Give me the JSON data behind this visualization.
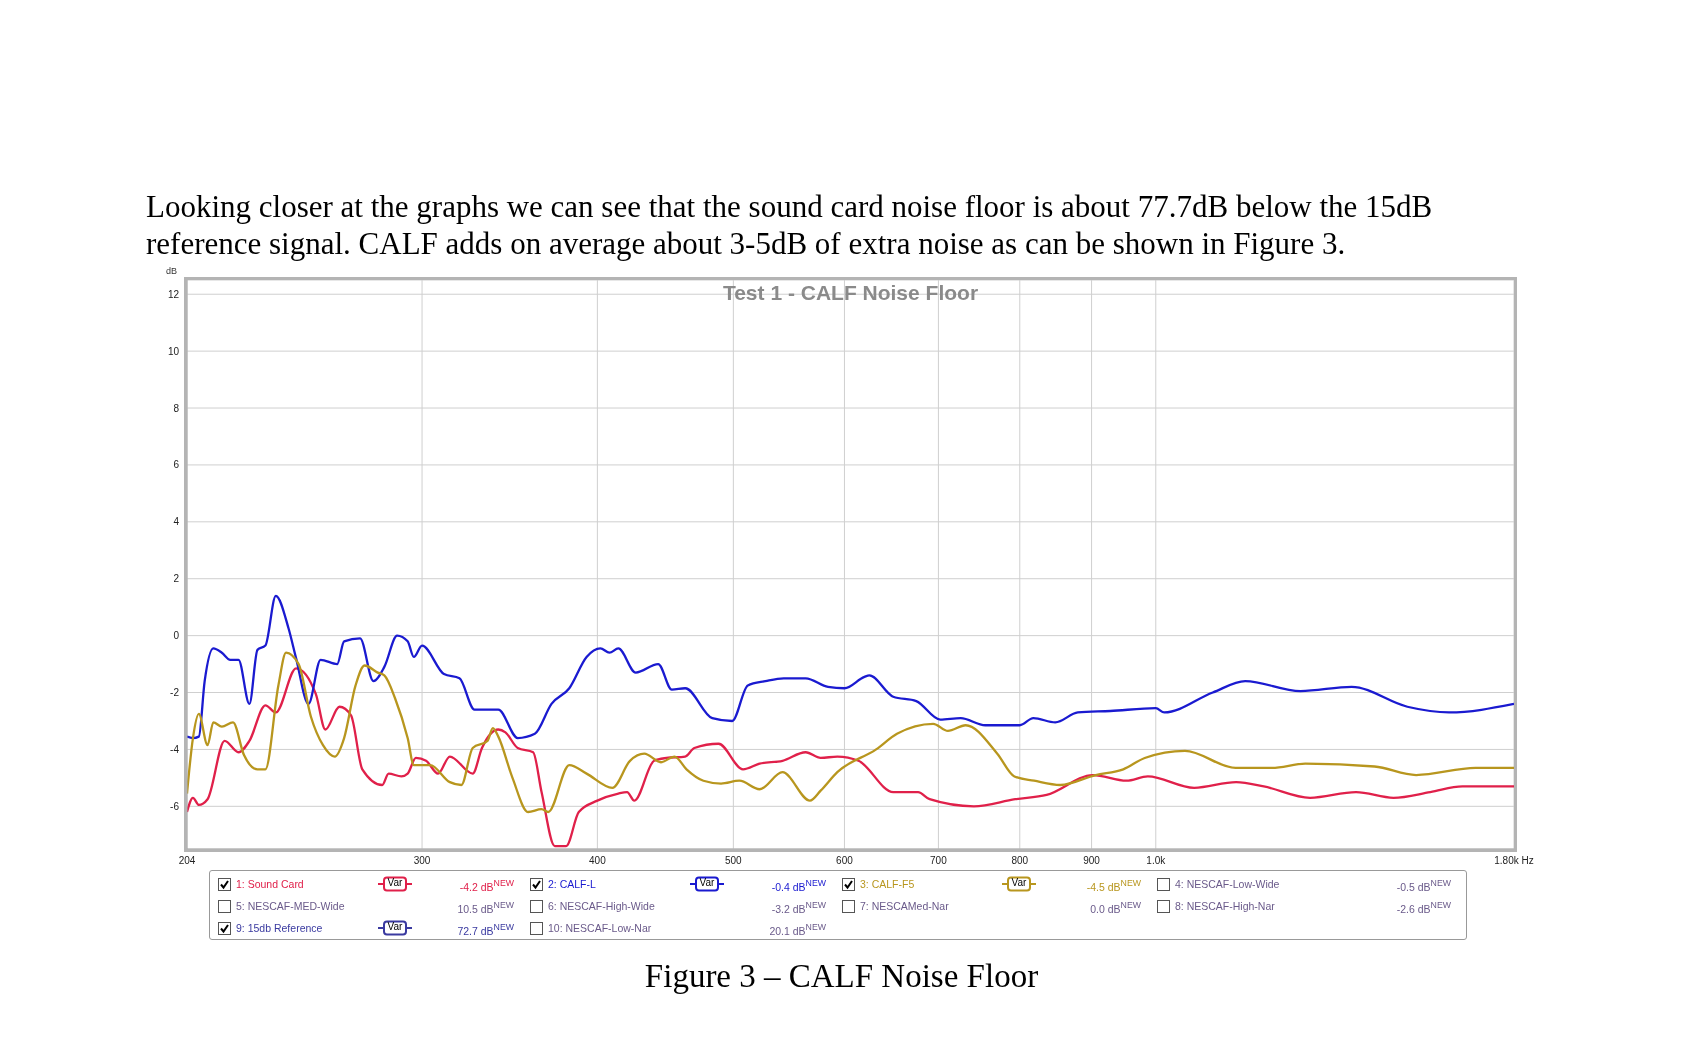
{
  "chart_data": {
    "type": "line",
    "title": "Test 1 - CALF Noise Floor",
    "ylabel": "dB",
    "xlim": [
      204,
      1800
    ],
    "xticks": [
      204,
      300,
      400,
      500,
      600,
      700,
      800,
      900,
      {
        "value": 1000,
        "label": "1.0k"
      },
      {
        "value": 1800,
        "label": "1.80k Hz"
      }
    ],
    "ylim": [
      -7.5,
      12.5
    ],
    "yticks": [
      -6,
      -4,
      -2,
      0,
      2,
      4,
      6,
      8,
      10,
      12
    ],
    "log": "x",
    "grid": true,
    "legend": "bottom",
    "marker": "none",
    "line_style": "solid",
    "annotations": [
      "Looking closer at the graphs we can see that the sound card noise floor is about 77.7dB below the 15dB",
      "reference signal. CALF adds on average about 3-5dB of extra noise as can be shown in Figure 3.",
      "Figure 3 – CALF Noise Floor",
      "Var",
      "-4.2 dB$^{NEW}$",
      "-0.4 dB$^{NEW}$",
      "-4.5 dB$^{NEW}$",
      "4: NESCAF-Low-Wide",
      "-0.5 dB$^{NEW}$",
      "5: NESCAF-MED-Wide",
      "10.5 dB$^{NEW}$",
      "6: NESCAF-High-Wide",
      "-3.2 dB$^{NEW}$",
      "7: NESCAMed-Nar",
      "0.0 dB$^{NEW}$",
      "8: NESCAF-High-Nar",
      "-2.6 dB$^{NEW}$",
      "9: 15db Reference",
      "72.7 dB$^{NEW}$",
      "10: NESCAF-Low-Nar",
      "20.1 dB$^{NEW}$"
    ],
    "series": [
      {
        "name": "1: Sound Card",
        "color": "#e0204a",
        "x": [
          204,
          206,
          208,
          211,
          217,
          222,
          226,
          232,
          236,
          244,
          252,
          256,
          262,
          267,
          272,
          281,
          284,
          290,
          293,
          297,
          302,
          308,
          314,
          326,
          331,
          340,
          344,
          351,
          360,
          365,
          373,
          380,
          388,
          400,
          414,
          420,
          425,
          439,
          448,
          462,
          469,
          488,
          508,
          522,
          542,
          563,
          577,
          593,
          614,
          650,
          677,
          690,
          742,
          794,
          836,
          902,
          953,
          987,
          1065,
          1141,
          1194,
          1288,
          1389,
          1477,
          1569,
          1654,
          1800
        ],
        "values": [
          -6.2,
          -5.7,
          -5.95,
          -5.75,
          -3.7,
          -4.1,
          -3.7,
          -2.45,
          -2.7,
          -1.15,
          -2.05,
          -3.3,
          -2.5,
          -2.8,
          -4.7,
          -5.25,
          -4.85,
          -4.95,
          -4.85,
          -4.3,
          -4.4,
          -4.85,
          -4.25,
          -4.85,
          -3.95,
          -3.3,
          -3.4,
          -3.95,
          -4.1,
          -5.5,
          -7.4,
          -7.4,
          -6.2,
          -5.8,
          -5.55,
          -5.5,
          -5.8,
          -4.4,
          -4.3,
          -4.25,
          -3.95,
          -3.8,
          -4.7,
          -4.5,
          -4.4,
          -4.1,
          -4.3,
          -4.25,
          -4.4,
          -5.5,
          -5.5,
          -5.75,
          -6.0,
          -5.75,
          -5.6,
          -4.9,
          -5.1,
          -4.95,
          -5.35,
          -5.15,
          -5.3,
          -5.7,
          -5.5,
          -5.7,
          -5.5,
          -5.3,
          -5.3
        ]
      },
      {
        "name": "2: CALF-L",
        "color": "#1a1ad0",
        "x": [
          204,
          206,
          208,
          210,
          213,
          216,
          219,
          222,
          226,
          229,
          232,
          236,
          241,
          244,
          249,
          254,
          261,
          264,
          271,
          277,
          282,
          288,
          293,
          296,
          300,
          311,
          319,
          327,
          340,
          351,
          361,
          371,
          382,
          393,
          402,
          408,
          414,
          426,
          442,
          452,
          462,
          483,
          499,
          512,
          527,
          543,
          563,
          584,
          600,
          620,
          625,
          650,
          675,
          702,
          726,
          756,
          800,
          818,
          848,
          880,
          928,
          1000,
          1014,
          1098,
          1158,
          1268,
          1379,
          1511,
          1618,
          1800
        ],
        "values": [
          -3.55,
          -3.6,
          -3.55,
          -1.6,
          -0.45,
          -0.6,
          -0.85,
          -0.85,
          -2.4,
          -0.5,
          -0.35,
          1.4,
          0.25,
          -0.8,
          -2.4,
          -0.85,
          -1.0,
          -0.2,
          -0.1,
          -1.6,
          -1.1,
          0,
          -0.2,
          -0.75,
          -0.35,
          -1.35,
          -1.5,
          -2.6,
          -2.6,
          -3.6,
          -3.45,
          -2.4,
          -1.85,
          -0.75,
          -0.45,
          -0.6,
          -0.45,
          -1.3,
          -1.0,
          -1.9,
          -1.85,
          -2.9,
          -3.0,
          -1.75,
          -1.6,
          -1.5,
          -1.5,
          -1.8,
          -1.85,
          -1.45,
          -1.4,
          -2.15,
          -2.3,
          -2.95,
          -2.9,
          -3.15,
          -3.15,
          -2.9,
          -3.05,
          -2.7,
          -2.65,
          -2.55,
          -2.7,
          -2.0,
          -1.6,
          -1.95,
          -1.8,
          -2.5,
          -2.7,
          -2.4
        ]
      },
      {
        "name": "3: CALF-F5",
        "color": "#b8961e",
        "x": [
          204,
          206,
          208,
          211,
          213,
          216,
          220,
          224,
          229,
          232,
          237,
          240,
          245,
          250,
          255,
          260,
          264,
          269,
          273,
          279,
          282,
          287,
          293,
          296,
          304,
          314,
          320,
          326,
          334,
          337,
          340,
          348,
          357,
          365,
          369,
          382,
          393,
          410,
          422,
          432,
          444,
          454,
          463,
          476,
          490,
          505,
          522,
          542,
          567,
          577,
          593,
          632,
          654,
          694,
          711,
          732,
          771,
          793,
          819,
          855,
          906,
          948,
          982,
          1049,
          1140,
          1210,
          1278,
          1432,
          1533,
          1690,
          1800
        ],
        "values": [
          -5.55,
          -3.6,
          -2.75,
          -3.85,
          -3.05,
          -3.2,
          -3.05,
          -4.2,
          -4.7,
          -4.7,
          -1.75,
          -0.6,
          -1.0,
          -2.85,
          -3.85,
          -4.25,
          -3.6,
          -1.75,
          -1.05,
          -1.3,
          -1.4,
          -2.2,
          -3.6,
          -4.55,
          -4.55,
          -5.15,
          -5.25,
          -3.95,
          -3.7,
          -3.25,
          -3.55,
          -5.0,
          -6.2,
          -6.1,
          -6.2,
          -4.55,
          -4.85,
          -5.35,
          -4.4,
          -4.15,
          -4.45,
          -4.25,
          -4.7,
          -5.1,
          -5.2,
          -5.1,
          -5.4,
          -4.8,
          -5.8,
          -5.45,
          -4.8,
          -4.0,
          -3.45,
          -3.1,
          -3.35,
          -3.15,
          -4.15,
          -4.95,
          -5.1,
          -5.25,
          -4.9,
          -4.7,
          -4.3,
          -4.05,
          -4.65,
          -4.65,
          -4.5,
          -4.6,
          -4.9,
          -4.65,
          -4.65
        ]
      }
    ]
  }
}
